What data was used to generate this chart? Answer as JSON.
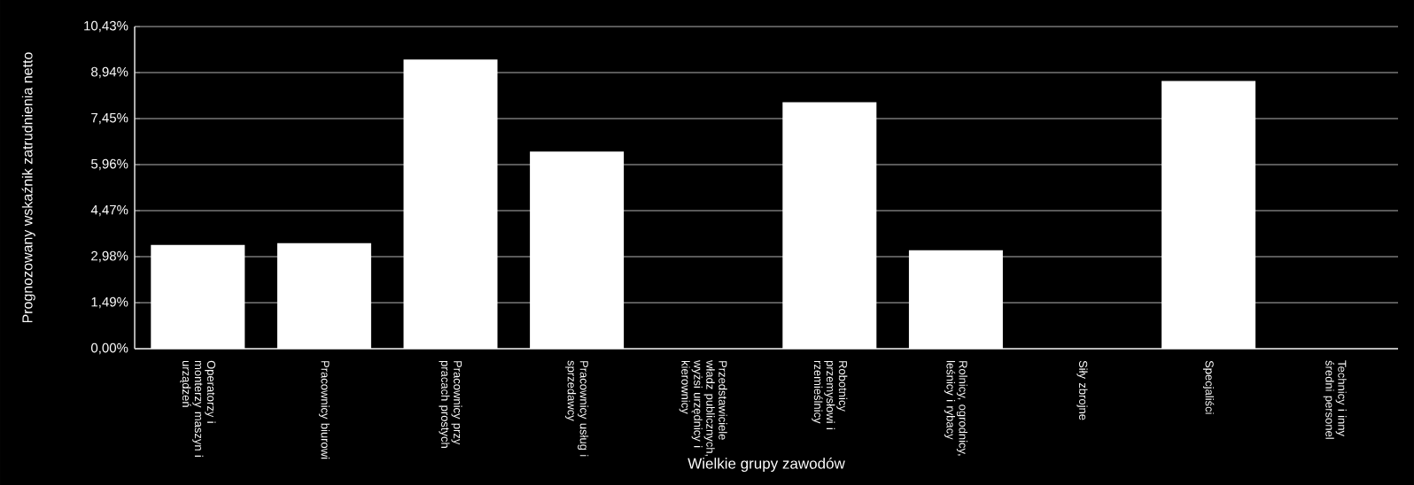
{
  "chart_data": {
    "type": "bar",
    "xlabel": "Wielkie grupy zawodów",
    "ylabel": "Prognozowany wskaźnik zatrudnienia netto",
    "categories": [
      "Operatorzy i monterzy maszyn i urządzeń",
      "Pracownicy biurowi",
      "Pracownicy przy pracach prostych",
      "Pracownicy usług i sprzedawcy",
      "Przedstawiciele władz publicznych, wyżsi urzędnicy i kierownicy",
      "Robotnicy przemysłowi i rzemieślnicy",
      "Rolnicy, ogrodnicy, leśnicy i rybacy",
      "Siły zbrojne",
      "Specjaliści",
      "Technicy i inny średni personel"
    ],
    "values": [
      3.36,
      3.42,
      9.36,
      6.38,
      0,
      7.98,
      3.19,
      0,
      8.67,
      0
    ],
    "color": "#ffffff",
    "ylim": [
      0,
      10.43
    ],
    "yticks": [
      {
        "value": 0,
        "label": "0,00%"
      },
      {
        "value": 1.49,
        "label": "1,49%"
      },
      {
        "value": 2.98,
        "label": "2,98%"
      },
      {
        "value": 4.47,
        "label": "4,47%"
      },
      {
        "value": 5.96,
        "label": "5,96%"
      },
      {
        "value": 7.45,
        "label": "7,45%"
      },
      {
        "value": 8.94,
        "label": "8,94%"
      },
      {
        "value": 10.43,
        "label": "10,43%"
      }
    ],
    "grid": "y"
  }
}
